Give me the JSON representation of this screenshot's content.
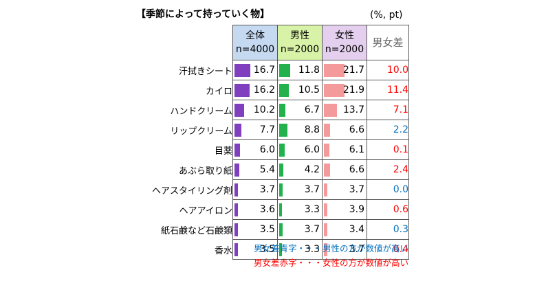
{
  "title": "【季節によって持っていく物】",
  "unit": "(%, pt)",
  "columns": [
    {
      "name": "全体",
      "n": "n=4000",
      "bg": "#c5d9f1",
      "bar": "#7f3fbf"
    },
    {
      "name": "男性",
      "n": "n=2000",
      "bg": "#d8f2a8",
      "bar": "#22b14c"
    },
    {
      "name": "女性",
      "n": "n=2000",
      "bg": "#e4d0ee",
      "bar": "#f49a9a"
    }
  ],
  "diff_header": "男女差",
  "colors": {
    "diff_positive": "#ff0000",
    "diff_negative": "#0070c0"
  },
  "chart_data": {
    "type": "table",
    "title": "【季節によって持っていく物】",
    "categories": [
      "汗拭きシート",
      "カイロ",
      "ハンドクリーム",
      "リップクリーム",
      "目薬",
      "あぶら取り紙",
      "ヘアスタイリング剤",
      "ヘアアイロン",
      "紙石鹸など石鹸類",
      "香水"
    ],
    "series": [
      {
        "name": "全体",
        "values": [
          16.7,
          16.2,
          10.2,
          7.7,
          6.0,
          5.4,
          3.7,
          3.6,
          3.5,
          3.5
        ]
      },
      {
        "name": "男性",
        "values": [
          11.8,
          10.5,
          6.7,
          8.8,
          6.0,
          4.2,
          3.7,
          3.3,
          3.7,
          3.3
        ]
      },
      {
        "name": "女性",
        "values": [
          21.7,
          21.9,
          13.7,
          6.6,
          6.1,
          6.6,
          3.7,
          3.9,
          3.4,
          3.7
        ]
      }
    ],
    "diff": {
      "name": "男女差",
      "values": [
        "10.0",
        "11.4",
        "7.1",
        "2.2",
        "0.1",
        "2.4",
        "0.0",
        "0.6",
        "0.3",
        "0.4"
      ],
      "direction": [
        "female",
        "female",
        "female",
        "male",
        "female",
        "female",
        "male",
        "female",
        "male",
        "female"
      ]
    },
    "bar_scale_max": 25
  },
  "legend": [
    {
      "text": "男女差青字・・・男性の方が数値が高い",
      "color": "#0070c0"
    },
    {
      "text": "男女差赤字・・・女性の方が数値が高い",
      "color": "#ff0000"
    }
  ]
}
